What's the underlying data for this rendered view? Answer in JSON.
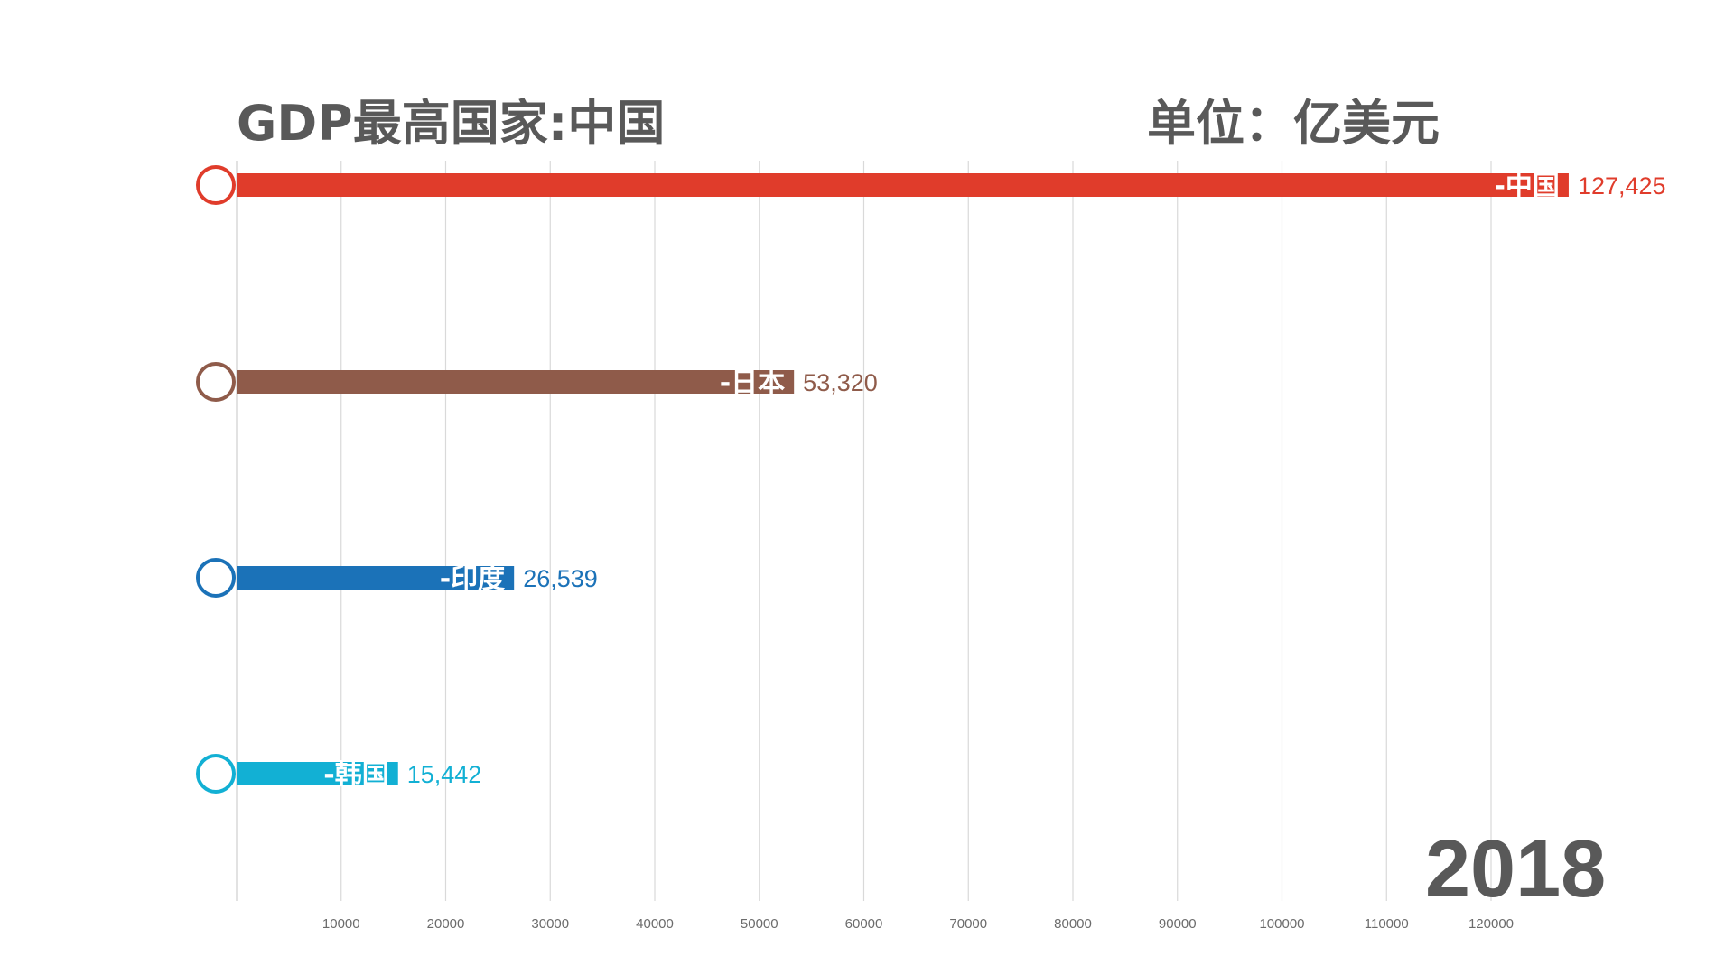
{
  "title": "GDP最高国家:中国",
  "unit": "单位：亿美元",
  "year": "2018",
  "chart_data": {
    "type": "bar",
    "orientation": "horizontal",
    "title": "GDP最高国家:中国",
    "unit": "单位：亿美元",
    "categories": [
      "-中国",
      "-日本",
      "-印度",
      "-韩国"
    ],
    "values": [
      127425,
      53320,
      26539,
      15442
    ],
    "value_labels": [
      "127,425",
      "53,320",
      "26,539",
      "15,442"
    ],
    "colors": [
      "#e03c2b",
      "#8f5b4a",
      "#1b72b8",
      "#12b0d4"
    ],
    "x_ticks": [
      10000,
      20000,
      30000,
      40000,
      50000,
      60000,
      70000,
      80000,
      90000,
      100000,
      110000,
      120000
    ],
    "xlim": [
      0,
      130000
    ],
    "grid": true,
    "year": "2018"
  }
}
